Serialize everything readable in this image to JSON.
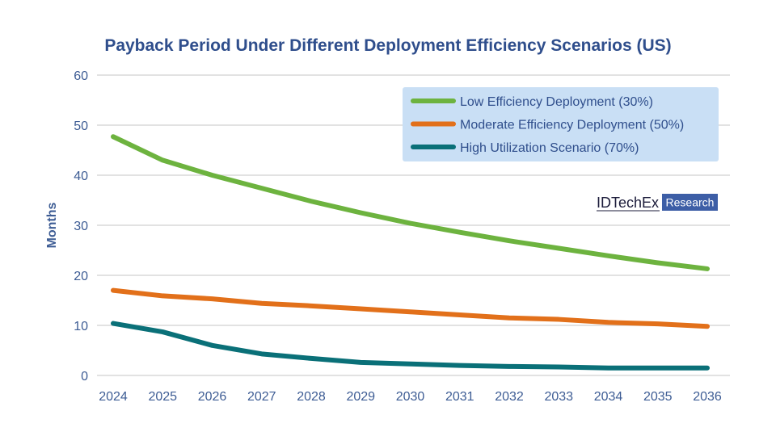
{
  "chart_data": {
    "type": "line",
    "title": "Payback Period Under Different Deployment Efficiency Scenarios (US)",
    "xlabel": "",
    "ylabel": "Months",
    "ylim": [
      0,
      60
    ],
    "yticks": [
      0,
      10,
      20,
      30,
      40,
      50,
      60
    ],
    "x": [
      "2024",
      "2025",
      "2026",
      "2027",
      "2028",
      "2029",
      "2030",
      "2031",
      "2032",
      "2033",
      "2034",
      "2035",
      "2036"
    ],
    "grid": "horizontal",
    "legend_position": "top-right",
    "series": [
      {
        "name": "Low Efficiency Deployment (30%)",
        "color": "#6db33f",
        "values": [
          47.7,
          43.0,
          40.0,
          37.4,
          34.8,
          32.5,
          30.4,
          28.6,
          26.9,
          25.4,
          23.9,
          22.5,
          21.3
        ]
      },
      {
        "name": "Moderate Efficiency Deployment (50%)",
        "color": "#e2701a",
        "values": [
          17.0,
          15.9,
          15.3,
          14.4,
          13.9,
          13.3,
          12.7,
          12.1,
          11.5,
          11.2,
          10.6,
          10.3,
          9.8
        ]
      },
      {
        "name": "High Utilization Scenario (70%)",
        "color": "#0a7078",
        "values": [
          10.4,
          8.7,
          6.0,
          4.3,
          3.4,
          2.6,
          2.3,
          2.0,
          1.8,
          1.7,
          1.5,
          1.5,
          1.5
        ]
      }
    ]
  },
  "brand": {
    "name": "IDTechEx",
    "tag": "Research"
  },
  "colors": {
    "title": "#2f4e8c",
    "axis_text": "#3d5c94",
    "legend_bg": "#c9dff5",
    "brand_tag_bg": "#3d5ea6"
  }
}
